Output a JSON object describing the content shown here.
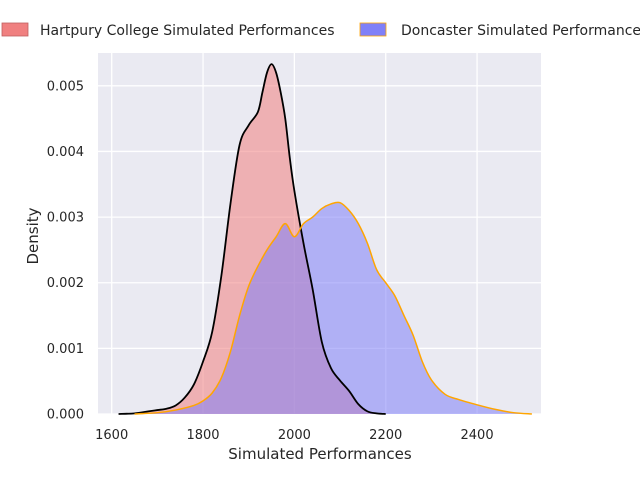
{
  "chart_data": {
    "type": "area",
    "title": "",
    "xlabel": "Simulated Performances",
    "ylabel": "Density",
    "xlim": [
      1570,
      2540
    ],
    "ylim": [
      0,
      0.0055
    ],
    "xticks": [
      1600,
      1800,
      2000,
      2200,
      2400
    ],
    "yticks": [
      0,
      0.001,
      0.002,
      0.003,
      0.004,
      0.005
    ],
    "xtick_labels": [
      "1600",
      "1800",
      "2000",
      "2200",
      "2400"
    ],
    "ytick_labels": [
      "0.000",
      "0.001",
      "0.002",
      "0.003",
      "0.004",
      "0.005"
    ],
    "grid": true,
    "legend_position": "top",
    "series": [
      {
        "name": "Hartpury College Simulated Performances",
        "fill_color": "#f08080",
        "line_color": "#000000",
        "points": [
          [
            1615,
            0
          ],
          [
            1650,
            1e-05
          ],
          [
            1680,
            4e-05
          ],
          [
            1700,
            6e-05
          ],
          [
            1720,
            8e-05
          ],
          [
            1740,
            0.00013
          ],
          [
            1760,
            0.00025
          ],
          [
            1780,
            0.00045
          ],
          [
            1800,
            0.0008
          ],
          [
            1820,
            0.00125
          ],
          [
            1840,
            0.0021
          ],
          [
            1860,
            0.0032
          ],
          [
            1880,
            0.0041
          ],
          [
            1900,
            0.0044
          ],
          [
            1920,
            0.0046
          ],
          [
            1930,
            0.0049
          ],
          [
            1940,
            0.0052
          ],
          [
            1950,
            0.00533
          ],
          [
            1960,
            0.0052
          ],
          [
            1970,
            0.0049
          ],
          [
            1980,
            0.0045
          ],
          [
            1990,
            0.0039
          ],
          [
            2000,
            0.0034
          ],
          [
            2020,
            0.0026
          ],
          [
            2040,
            0.0019
          ],
          [
            2060,
            0.0011
          ],
          [
            2080,
            0.0007
          ],
          [
            2100,
            0.00051
          ],
          [
            2120,
            0.00035
          ],
          [
            2140,
            0.00015
          ],
          [
            2160,
            4e-05
          ],
          [
            2180,
            1e-05
          ],
          [
            2200,
            0
          ]
        ]
      },
      {
        "name": "Doncaster Simulated Performances",
        "fill_color": "#8080f8",
        "line_color": "#ffa500",
        "points": [
          [
            1650,
            0
          ],
          [
            1700,
            2e-05
          ],
          [
            1740,
            6e-05
          ],
          [
            1780,
            0.00013
          ],
          [
            1800,
            0.0002
          ],
          [
            1820,
            0.00032
          ],
          [
            1840,
            0.00055
          ],
          [
            1860,
            0.00095
          ],
          [
            1880,
            0.0015
          ],
          [
            1900,
            0.00195
          ],
          [
            1920,
            0.00225
          ],
          [
            1940,
            0.0025
          ],
          [
            1960,
            0.0027
          ],
          [
            1980,
            0.0029
          ],
          [
            2000,
            0.0027
          ],
          [
            2020,
            0.0029
          ],
          [
            2040,
            0.003
          ],
          [
            2060,
            0.00313
          ],
          [
            2080,
            0.0032
          ],
          [
            2100,
            0.00322
          ],
          [
            2120,
            0.0031
          ],
          [
            2140,
            0.0029
          ],
          [
            2160,
            0.0026
          ],
          [
            2180,
            0.0022
          ],
          [
            2200,
            0.002
          ],
          [
            2220,
            0.0018
          ],
          [
            2240,
            0.0015
          ],
          [
            2260,
            0.0012
          ],
          [
            2280,
            0.0008
          ],
          [
            2300,
            0.00052
          ],
          [
            2330,
            0.0003
          ],
          [
            2360,
            0.00022
          ],
          [
            2400,
            0.00014
          ],
          [
            2440,
            7e-05
          ],
          [
            2480,
            2e-05
          ],
          [
            2520,
            0
          ]
        ]
      }
    ]
  }
}
